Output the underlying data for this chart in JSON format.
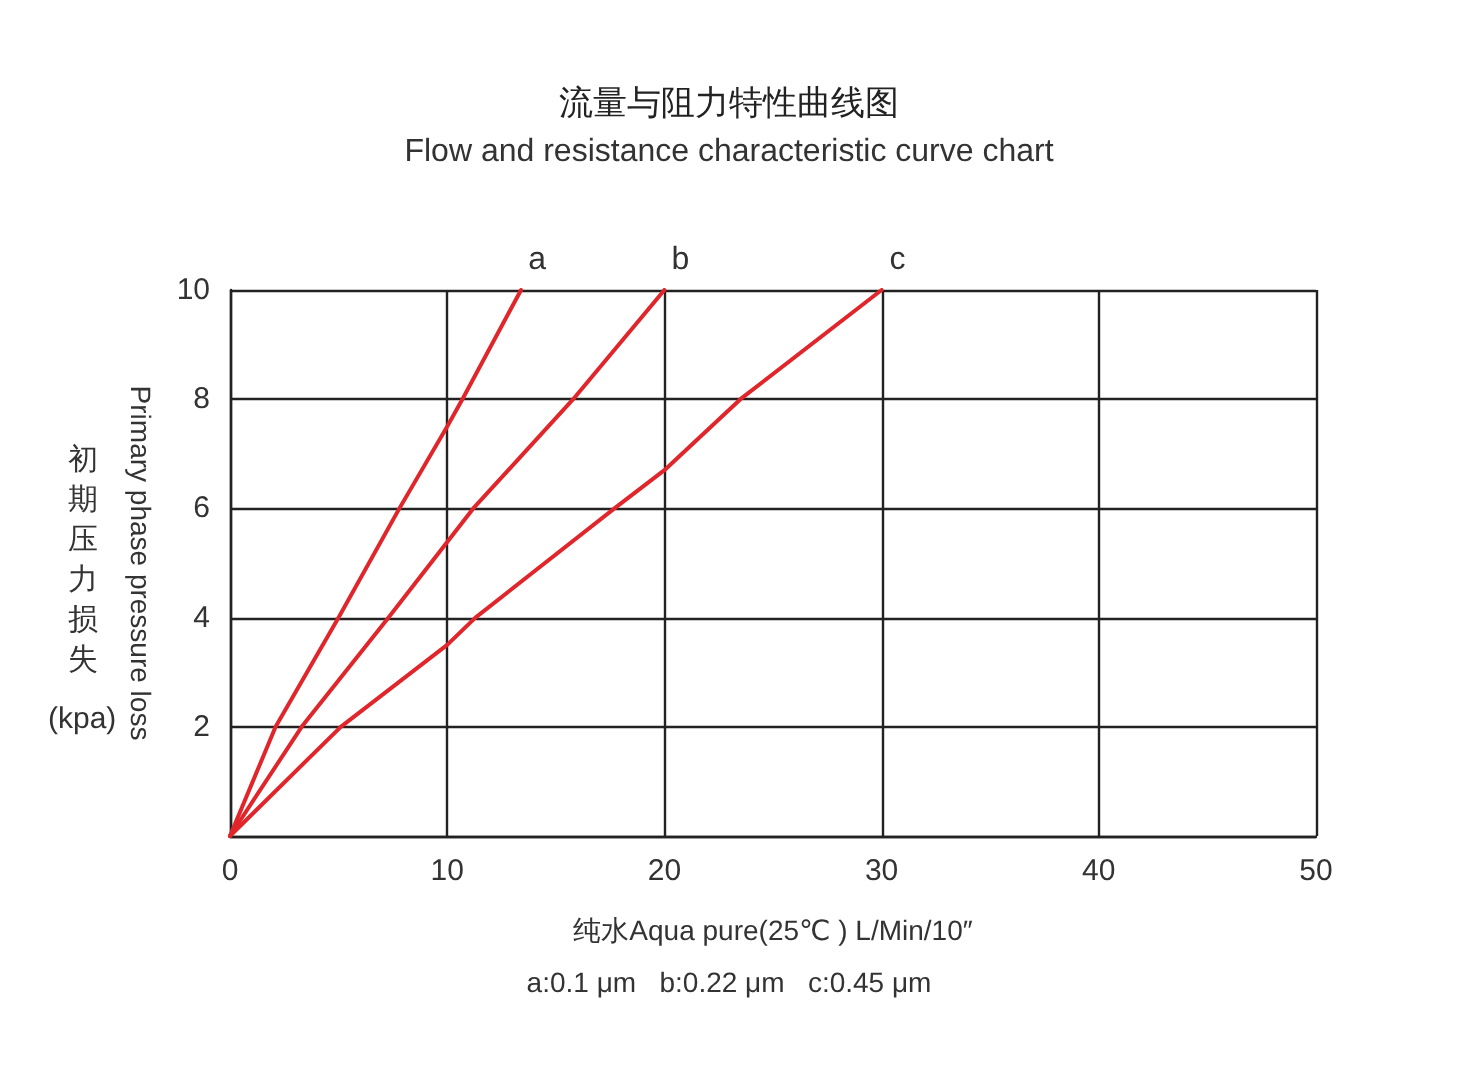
{
  "chart_data": {
    "type": "line",
    "title": "流量与阻力特性曲线图",
    "subtitle": "Flow and resistance characteristic curve chart",
    "xlabel": "纯水Aqua pure(25℃ ) L/Min/10″",
    "ylabel": "Primary phase pressure loss",
    "annotations": [
      "初期压力损失",
      "(kpa)",
      "a:0.1 μm   b:0.22 μm   c:0.45 μm"
    ],
    "series": [
      {
        "name": "a",
        "color": "#e0262b",
        "x": [
          0,
          2.1,
          5,
          7.8,
          10,
          10.7,
          13.4
        ],
        "values": [
          0,
          2,
          4,
          6,
          7.5,
          8,
          10
        ]
      },
      {
        "name": "b",
        "color": "#e0262b",
        "x": [
          0,
          3.3,
          7.3,
          11.2,
          15.8,
          20
        ],
        "values": [
          0,
          2,
          4,
          6,
          8,
          10
        ]
      },
      {
        "name": "c",
        "color": "#e0262b",
        "x": [
          0,
          5.1,
          10,
          11.3,
          17.7,
          20,
          23.5,
          30
        ],
        "values": [
          0,
          2,
          3.5,
          4,
          6,
          6.7,
          8,
          10
        ]
      }
    ],
    "xlim": [
      0,
      50
    ],
    "xticks": [
      0,
      10,
      20,
      30,
      40,
      50
    ],
    "ylim": [
      0,
      10
    ],
    "yticks": [
      {
        "value": 0,
        "label": null
      },
      2,
      4,
      6,
      8,
      10
    ],
    "grid": true,
    "line_style": "solid"
  }
}
